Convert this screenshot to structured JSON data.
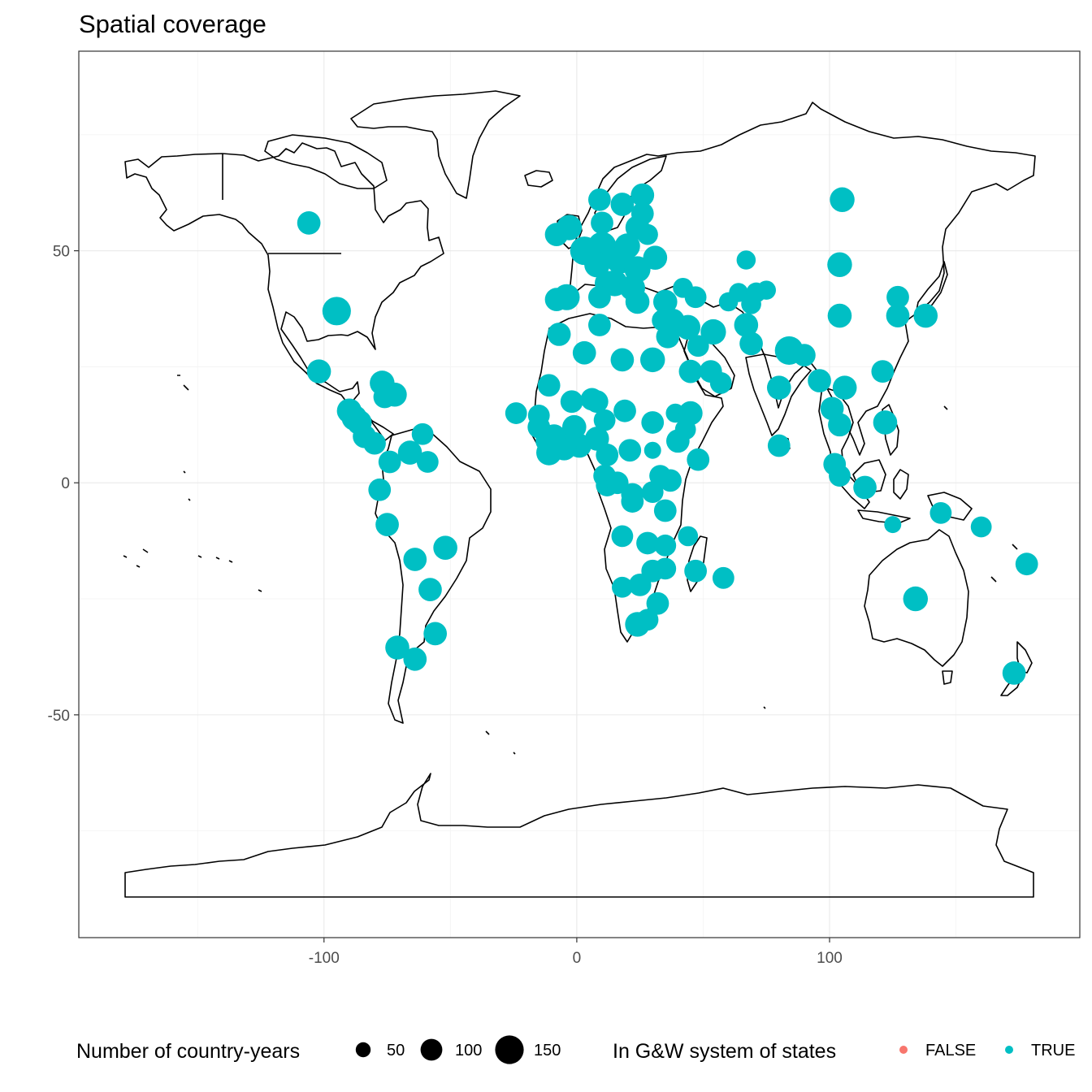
{
  "chart_data": {
    "type": "scatter",
    "title": "Spatial coverage",
    "xlabel": "",
    "ylabel": "",
    "xlim": [
      -197,
      199
    ],
    "ylim": [
      -98,
      93
    ],
    "x_ticks": [
      -100,
      0,
      100
    ],
    "x_tick_labels": [
      "-100",
      "0",
      "100"
    ],
    "y_ticks": [
      -50,
      0,
      50
    ],
    "y_tick_labels": [
      "-50",
      "0",
      "50"
    ],
    "grid": true,
    "panel_border": true,
    "point_color": "#00BFC4",
    "legend": {
      "placement": "bottom",
      "size": {
        "title": "Number of country-years",
        "labels": [
          "50",
          "100",
          "150"
        ],
        "values": [
          50,
          100,
          150
        ]
      },
      "color": {
        "title": "In G&W system of states",
        "entries": [
          {
            "label": "FALSE",
            "color": "#F8766D"
          },
          {
            "label": "TRUE",
            "color": "#00BFC4"
          }
        ]
      }
    },
    "points": [
      {
        "lon": -106,
        "lat": 56,
        "n": 120
      },
      {
        "lon": -95,
        "lat": 37,
        "n": 200
      },
      {
        "lon": -102,
        "lat": 24,
        "n": 130
      },
      {
        "lon": -77,
        "lat": 21.5,
        "n": 140
      },
      {
        "lon": -72,
        "lat": 19,
        "n": 130
      },
      {
        "lon": -76,
        "lat": 18.5,
        "n": 110
      },
      {
        "lon": -90,
        "lat": 15.5,
        "n": 140
      },
      {
        "lon": -88,
        "lat": 14,
        "n": 150
      },
      {
        "lon": -86,
        "lat": 13,
        "n": 140
      },
      {
        "lon": -84,
        "lat": 10,
        "n": 120
      },
      {
        "lon": -80,
        "lat": 8.5,
        "n": 110
      },
      {
        "lon": -61,
        "lat": 10.5,
        "n": 100
      },
      {
        "lon": -66,
        "lat": 6.5,
        "n": 130
      },
      {
        "lon": -59,
        "lat": 4.5,
        "n": 100
      },
      {
        "lon": -74,
        "lat": 4.5,
        "n": 110
      },
      {
        "lon": -78,
        "lat": -1.5,
        "n": 110
      },
      {
        "lon": -75,
        "lat": -9,
        "n": 120
      },
      {
        "lon": -52,
        "lat": -14,
        "n": 130
      },
      {
        "lon": -64,
        "lat": -16.5,
        "n": 120
      },
      {
        "lon": -58,
        "lat": -23,
        "n": 120
      },
      {
        "lon": -56,
        "lat": -32.5,
        "n": 120
      },
      {
        "lon": -71,
        "lat": -35.5,
        "n": 130
      },
      {
        "lon": -64,
        "lat": -38,
        "n": 120
      },
      {
        "lon": 105,
        "lat": 61,
        "n": 140
      },
      {
        "lon": 104,
        "lat": 47,
        "n": 140
      },
      {
        "lon": 104,
        "lat": 36,
        "n": 130
      },
      {
        "lon": 127,
        "lat": 40,
        "n": 110
      },
      {
        "lon": 127,
        "lat": 36,
        "n": 120
      },
      {
        "lon": 138,
        "lat": 36,
        "n": 130
      },
      {
        "lon": 121,
        "lat": 24,
        "n": 110
      },
      {
        "lon": 84,
        "lat": 28.5,
        "n": 200
      },
      {
        "lon": 90,
        "lat": 27.5,
        "n": 110
      },
      {
        "lon": 80,
        "lat": 20.5,
        "n": 130
      },
      {
        "lon": 96,
        "lat": 22,
        "n": 120
      },
      {
        "lon": 106,
        "lat": 20.5,
        "n": 130
      },
      {
        "lon": 101,
        "lat": 16,
        "n": 120
      },
      {
        "lon": 104,
        "lat": 12.5,
        "n": 120
      },
      {
        "lon": 80,
        "lat": 8,
        "n": 110
      },
      {
        "lon": 102,
        "lat": 4,
        "n": 110
      },
      {
        "lon": 104,
        "lat": 1.5,
        "n": 100
      },
      {
        "lon": 114,
        "lat": -1,
        "n": 120
      },
      {
        "lon": 122,
        "lat": 13,
        "n": 130
      },
      {
        "lon": 134,
        "lat": -25,
        "n": 140
      },
      {
        "lon": 173,
        "lat": -41,
        "n": 120
      },
      {
        "lon": 178,
        "lat": -17.5,
        "n": 110
      },
      {
        "lon": 144,
        "lat": -6.5,
        "n": 100
      },
      {
        "lon": 160,
        "lat": -9.5,
        "n": 90
      },
      {
        "lon": 125,
        "lat": -9,
        "n": 50
      },
      {
        "lon": -8,
        "lat": 53.5,
        "n": 120
      },
      {
        "lon": -3,
        "lat": 55,
        "n": 150
      },
      {
        "lon": 9,
        "lat": 61,
        "n": 110
      },
      {
        "lon": 18,
        "lat": 60,
        "n": 120
      },
      {
        "lon": 26,
        "lat": 62,
        "n": 120
      },
      {
        "lon": 10,
        "lat": 56,
        "n": 110
      },
      {
        "lon": 3,
        "lat": 50,
        "n": 200
      },
      {
        "lon": 10,
        "lat": 51,
        "n": 200
      },
      {
        "lon": 17,
        "lat": 48,
        "n": 180
      },
      {
        "lon": 20,
        "lat": 51,
        "n": 150
      },
      {
        "lon": 24,
        "lat": 55,
        "n": 130
      },
      {
        "lon": 26,
        "lat": 58,
        "n": 110
      },
      {
        "lon": 28,
        "lat": 53.5,
        "n": 90
      },
      {
        "lon": 24,
        "lat": 46,
        "n": 160
      },
      {
        "lon": 15,
        "lat": 43,
        "n": 160
      },
      {
        "lon": 22,
        "lat": 42,
        "n": 150
      },
      {
        "lon": 24,
        "lat": 39,
        "n": 130
      },
      {
        "lon": 12,
        "lat": 43,
        "n": 140
      },
      {
        "lon": 8,
        "lat": 47,
        "n": 150
      },
      {
        "lon": -4,
        "lat": 40,
        "n": 160
      },
      {
        "lon": -8,
        "lat": 39.5,
        "n": 120
      },
      {
        "lon": 9,
        "lat": 40,
        "n": 110
      },
      {
        "lon": 31,
        "lat": 48.5,
        "n": 130
      },
      {
        "lon": 35,
        "lat": 39,
        "n": 130
      },
      {
        "lon": 34,
        "lat": 35,
        "n": 100
      },
      {
        "lon": 42,
        "lat": 42,
        "n": 80
      },
      {
        "lon": 47,
        "lat": 40,
        "n": 100
      },
      {
        "lon": 64,
        "lat": 41,
        "n": 70
      },
      {
        "lon": 71,
        "lat": 41,
        "n": 80
      },
      {
        "lon": 75,
        "lat": 41.5,
        "n": 70
      },
      {
        "lon": 67,
        "lat": 48,
        "n": 70
      },
      {
        "lon": 60,
        "lat": 39,
        "n": 70
      },
      {
        "lon": 69,
        "lat": 38.5,
        "n": 80
      },
      {
        "lon": 54,
        "lat": 32.5,
        "n": 150
      },
      {
        "lon": 67,
        "lat": 34,
        "n": 130
      },
      {
        "lon": 69,
        "lat": 30,
        "n": 120
      },
      {
        "lon": 44,
        "lat": 33.5,
        "n": 140
      },
      {
        "lon": 38,
        "lat": 35,
        "n": 120
      },
      {
        "lon": 36,
        "lat": 31.5,
        "n": 120
      },
      {
        "lon": 45,
        "lat": 24,
        "n": 120
      },
      {
        "lon": 53,
        "lat": 24,
        "n": 110
      },
      {
        "lon": 57,
        "lat": 21.5,
        "n": 100
      },
      {
        "lon": 48,
        "lat": 29.5,
        "n": 100
      },
      {
        "lon": 30,
        "lat": 26.5,
        "n": 140
      },
      {
        "lon": 18,
        "lat": 26.5,
        "n": 120
      },
      {
        "lon": 9,
        "lat": 34,
        "n": 110
      },
      {
        "lon": 3,
        "lat": 28,
        "n": 120
      },
      {
        "lon": -7,
        "lat": 32,
        "n": 120
      },
      {
        "lon": -11,
        "lat": 21,
        "n": 110
      },
      {
        "lon": -2,
        "lat": 17.5,
        "n": 110
      },
      {
        "lon": 8,
        "lat": 17.5,
        "n": 110
      },
      {
        "lon": 19,
        "lat": 15.5,
        "n": 110
      },
      {
        "lon": 30,
        "lat": 13,
        "n": 110
      },
      {
        "lon": 39,
        "lat": 15,
        "n": 70
      },
      {
        "lon": 40,
        "lat": 9,
        "n": 120
      },
      {
        "lon": 48,
        "lat": 5,
        "n": 110
      },
      {
        "lon": 43,
        "lat": 11.5,
        "n": 90
      },
      {
        "lon": 45,
        "lat": 15,
        "n": 130
      },
      {
        "lon": 37,
        "lat": 0.5,
        "n": 110
      },
      {
        "lon": 30,
        "lat": 7,
        "n": 50
      },
      {
        "lon": 21,
        "lat": 7,
        "n": 110
      },
      {
        "lon": 12,
        "lat": 6,
        "n": 110
      },
      {
        "lon": 8,
        "lat": 9.5,
        "n": 130
      },
      {
        "lon": 1,
        "lat": 8,
        "n": 130
      },
      {
        "lon": -1,
        "lat": 12,
        "n": 130
      },
      {
        "lon": -5,
        "lat": 7.5,
        "n": 140
      },
      {
        "lon": -9,
        "lat": 10,
        "n": 130
      },
      {
        "lon": -11,
        "lat": 6.5,
        "n": 150
      },
      {
        "lon": -12,
        "lat": 9,
        "n": 100
      },
      {
        "lon": -15,
        "lat": 12,
        "n": 110
      },
      {
        "lon": -15,
        "lat": 14.5,
        "n": 100
      },
      {
        "lon": -24,
        "lat": 15,
        "n": 100
      },
      {
        "lon": 11,
        "lat": 1.5,
        "n": 110
      },
      {
        "lon": 12,
        "lat": -0.5,
        "n": 110
      },
      {
        "lon": 16,
        "lat": 0,
        "n": 110
      },
      {
        "lon": 22,
        "lat": -2.5,
        "n": 110
      },
      {
        "lon": 30,
        "lat": -2,
        "n": 100
      },
      {
        "lon": 33,
        "lat": 1.5,
        "n": 100
      },
      {
        "lon": 35,
        "lat": -6,
        "n": 110
      },
      {
        "lon": 22,
        "lat": -4,
        "n": 110
      },
      {
        "lon": 18,
        "lat": -11.5,
        "n": 100
      },
      {
        "lon": 28,
        "lat": -13,
        "n": 110
      },
      {
        "lon": 35,
        "lat": -13.5,
        "n": 100
      },
      {
        "lon": 44,
        "lat": -11.5,
        "n": 80
      },
      {
        "lon": 30,
        "lat": -19,
        "n": 110
      },
      {
        "lon": 35,
        "lat": -18.5,
        "n": 100
      },
      {
        "lon": 47,
        "lat": -19,
        "n": 110
      },
      {
        "lon": 58,
        "lat": -20.5,
        "n": 100
      },
      {
        "lon": 18,
        "lat": -22.5,
        "n": 90
      },
      {
        "lon": 25,
        "lat": -22,
        "n": 110
      },
      {
        "lon": 32,
        "lat": -26,
        "n": 110
      },
      {
        "lon": 28,
        "lat": -29.5,
        "n": 100
      },
      {
        "lon": 24,
        "lat": -30.5,
        "n": 140
      },
      {
        "lon": 11,
        "lat": 13.5,
        "n": 100
      },
      {
        "lon": 6,
        "lat": 18,
        "n": 110
      }
    ]
  }
}
